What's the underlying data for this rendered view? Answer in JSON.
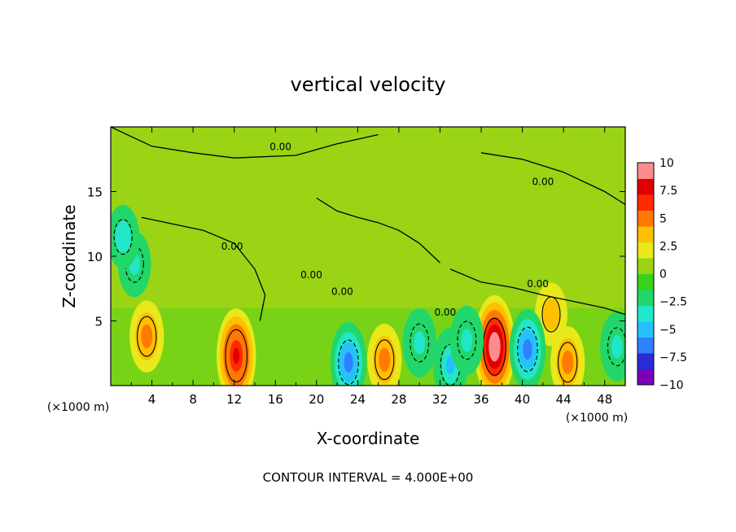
{
  "chart_data": {
    "type": "heatmap",
    "title": "vertical velocity",
    "xlabel": "X-coordinate",
    "ylabel": "Z-coordinate",
    "x_unit_label": "(×1000 m)",
    "y_unit_label": "(×1000 m)",
    "footer": "CONTOUR INTERVAL = 4.000E+00",
    "xlim": [
      0,
      50
    ],
    "ylim": [
      0,
      20
    ],
    "x_ticks": [
      4,
      8,
      12,
      16,
      20,
      24,
      28,
      32,
      36,
      40,
      44,
      48
    ],
    "y_ticks": [
      5,
      10,
      15
    ],
    "colorbar": {
      "ticks": [
        "10",
        "7.5",
        "5",
        "2.5",
        "0",
        "−2.5",
        "−5",
        "−7.5",
        "−10"
      ],
      "range": [
        -10,
        10
      ],
      "colors": [
        "#7a00b8",
        "#2a2ad6",
        "#2f7fff",
        "#27c0ff",
        "#22e6c8",
        "#22d66a",
        "#38d21a",
        "#9ad414",
        "#e8e81a",
        "#ffc000",
        "#ff7a00",
        "#ff2a00",
        "#e00000",
        "#ff8c8c"
      ]
    },
    "contour_labels": [
      "0.00",
      "0.00",
      "0.00",
      "0.00",
      "0.00",
      "0.00",
      "0.00"
    ],
    "features": [
      {
        "kind": "updraft",
        "x": 12.2,
        "z": 2.3,
        "peak": 8.5
      },
      {
        "kind": "updraft",
        "x": 37.3,
        "z": 3.0,
        "peak": 10
      },
      {
        "kind": "updraft",
        "x": 3.5,
        "z": 3.8,
        "peak": 4.5
      },
      {
        "kind": "updraft",
        "x": 26.6,
        "z": 2.0,
        "peak": 4.5
      },
      {
        "kind": "updraft",
        "x": 44.4,
        "z": 1.8,
        "peak": 4.5
      },
      {
        "kind": "updraft",
        "x": 42.8,
        "z": 5.5,
        "peak": 3.0
      },
      {
        "kind": "downdraft",
        "x": 23.1,
        "z": 1.8,
        "peak": -6
      },
      {
        "kind": "downdraft",
        "x": 33.0,
        "z": 1.6,
        "peak": -5
      },
      {
        "kind": "downdraft",
        "x": 40.5,
        "z": 2.8,
        "peak": -6
      },
      {
        "kind": "downdraft",
        "x": 30.0,
        "z": 3.3,
        "peak": -4
      },
      {
        "kind": "downdraft",
        "x": 34.6,
        "z": 3.5,
        "peak": -4
      },
      {
        "kind": "downdraft",
        "x": 49.2,
        "z": 3.0,
        "peak": -4
      },
      {
        "kind": "downdraft",
        "x": 2.3,
        "z": 9.4,
        "peak": -3.5
      },
      {
        "kind": "downdraft",
        "x": 1.2,
        "z": 11.5,
        "peak": -3.0
      }
    ]
  }
}
